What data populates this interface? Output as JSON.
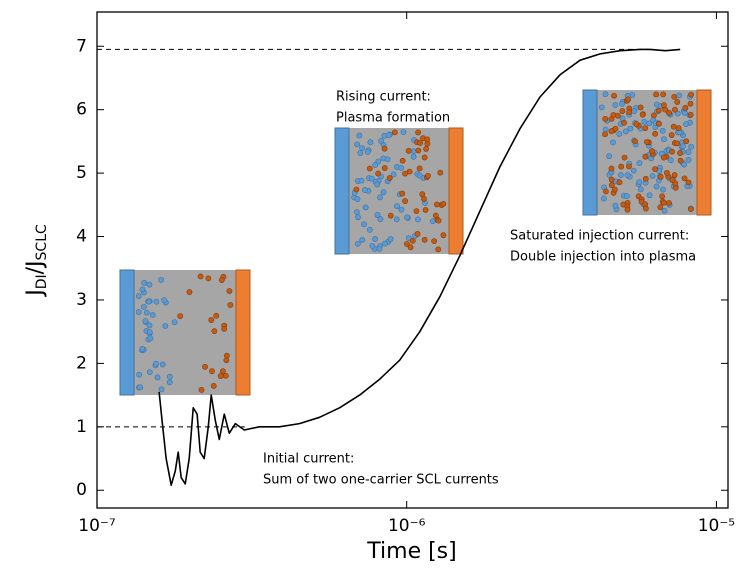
{
  "chart_data": {
    "type": "line",
    "x_label": "Time [s]",
    "y_label_parts": [
      "J",
      "DI",
      "/J",
      "SCLC"
    ],
    "log_x": true,
    "xlim": [
      1e-07,
      1.09e-05
    ],
    "xticks": [
      {
        "value": 1e-07,
        "label": "10⁻⁷"
      },
      {
        "value": 1e-06,
        "label": "10⁻⁶"
      },
      {
        "value": 1e-05,
        "label": "10⁻⁵"
      }
    ],
    "ylim": [
      -0.28,
      7.54
    ],
    "yticks": [
      0,
      1,
      2,
      3,
      4,
      5,
      6,
      7
    ],
    "color": "#000000",
    "x": [
      1.587e-07,
      1.622e-07,
      1.672e-07,
      1.736e-07,
      1.789e-07,
      1.829e-07,
      1.87e-07,
      1.927e-07,
      1.985e-07,
      2.045e-07,
      2.105e-07,
      2.154e-07,
      2.219e-07,
      2.287e-07,
      2.338e-07,
      2.41e-07,
      2.482e-07,
      2.576e-07,
      2.674e-07,
      2.797e-07,
      2.99e-07,
      3.344e-07,
      3.882e-07,
      4.506e-07,
      5.23e-07,
      6.071e-07,
      7.046e-07,
      8.178e-07,
      9.491e-07,
      1.102e-06,
      1.279e-06,
      1.485e-06,
      1.723e-06,
      2e-06,
      2.321e-06,
      2.694e-06,
      3.127e-06,
      3.63e-06,
      4.213e-06,
      4.89e-06,
      5.675e-06,
      6.114e-06,
      6.84e-06,
      7.64e-06
    ],
    "values": [
      1.55,
      1.1,
      0.5,
      0.08,
      0.3,
      0.6,
      0.2,
      0.1,
      0.5,
      1.3,
      1.2,
      0.6,
      0.5,
      1.0,
      1.5,
      1.1,
      0.8,
      1.2,
      0.9,
      1.05,
      0.95,
      1.0,
      1.0,
      1.05,
      1.15,
      1.3,
      1.5,
      1.75,
      2.05,
      2.5,
      3.05,
      3.7,
      4.4,
      5.1,
      5.7,
      6.2,
      6.55,
      6.78,
      6.88,
      6.93,
      6.95,
      6.95,
      6.93,
      6.95
    ],
    "reference_lines": [
      {
        "y": 1,
        "x": [
          1e-07,
          3e-07
        ]
      },
      {
        "y": 6.95,
        "x": [
          1e-07,
          6e-06
        ]
      }
    ],
    "annotations": [
      [
        "Rising current:",
        "Plasma formation"
      ],
      [
        "Saturated injection current:",
        "Double injection into plasma"
      ],
      [
        "Initial current:",
        "Sum of two one-carrier SCL currents"
      ]
    ]
  }
}
